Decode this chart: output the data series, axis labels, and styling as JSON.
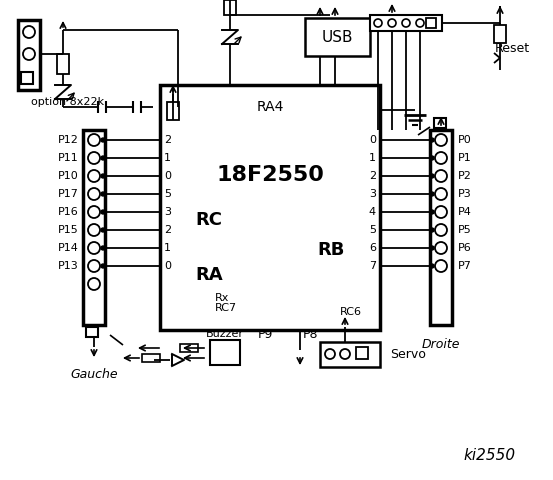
{
  "bg_color": "#ffffff",
  "title": "ki2550",
  "ic_label": "18F2550",
  "ic_sublabel": "RA4",
  "rc_label": "RC",
  "ra_label": "RA",
  "rb_label": "RB",
  "rx_label": "Rx",
  "rc7_label": "RC7",
  "rc6_label": "RC6",
  "left_labels": [
    "P12",
    "P11",
    "P10",
    "P17",
    "P16",
    "P15",
    "P14",
    "P13"
  ],
  "right_labels": [
    "P0",
    "P1",
    "P2",
    "P3",
    "P4",
    "P5",
    "P6",
    "P7"
  ],
  "rc_pins": [
    "2",
    "1",
    "0"
  ],
  "ra_pins": [
    "5",
    "3",
    "2",
    "1",
    "0"
  ],
  "rb_pins": [
    "0",
    "1",
    "2",
    "3",
    "4",
    "5",
    "6",
    "7"
  ],
  "gauche_label": "Gauche",
  "droite_label": "Droite",
  "option_label": "option 8x22k",
  "buzzer_label": "Buzzer",
  "p9_label": "P9",
  "p8_label": "P8",
  "servo_label": "Servo",
  "reset_label": "Reset",
  "usb_label": "USB"
}
